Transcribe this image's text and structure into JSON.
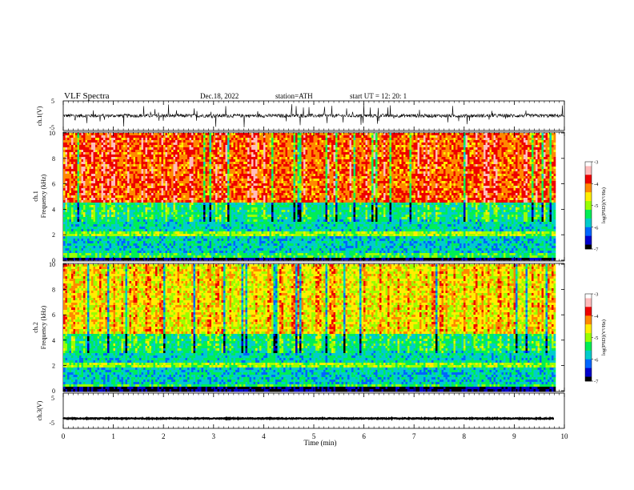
{
  "header": {
    "title": "VLF  Spectra",
    "date": "Dec.18, 2022",
    "station": "station=ATH",
    "start": "start  UT  =    12: 20: 1"
  },
  "colors": {
    "scale": [
      "#000000",
      "#0000cc",
      "#0066ff",
      "#00cccc",
      "#00ee55",
      "#99ff00",
      "#ffee00",
      "#ff8800",
      "#ee0000",
      "#ffbbbb",
      "#ffffff"
    ]
  },
  "chart_data": [
    {
      "type": "line",
      "name": "ch1-waveform",
      "ylabel": "ch.1(V)",
      "ylim": [
        -5,
        5
      ],
      "yticks": [
        "5",
        "-5"
      ],
      "x_range": [
        0,
        10
      ],
      "baseline": 0,
      "amplitude": 1.2
    },
    {
      "type": "heatmap",
      "name": "ch1-spectrogram",
      "ylabel_top": "ch.1",
      "ylabel": "Frequency  (kHz)",
      "ylim": [
        0,
        10
      ],
      "yticks": [
        "0",
        "2",
        "4",
        "6",
        "8",
        "10"
      ],
      "x_range": [
        0,
        9.8
      ],
      "colorbar": {
        "label": "log(PSD)(V²/Hz)",
        "range": [
          -7,
          -3
        ],
        "ticks": [
          "-3",
          "-4",
          "-5",
          "-6",
          "-7"
        ]
      }
    },
    {
      "type": "heatmap",
      "name": "ch2-spectrogram",
      "ylabel_top": "ch.2",
      "ylabel": "Frequency  (kHz)",
      "ylim": [
        0,
        10
      ],
      "yticks": [
        "0",
        "2",
        "4",
        "6",
        "8",
        "10"
      ],
      "x_range": [
        0,
        9.8
      ],
      "colorbar": {
        "label": "log(PSD)(V²/Hz)",
        "range": [
          -7,
          -3
        ],
        "ticks": [
          "-3",
          "-4",
          "-5",
          "-6",
          "-7"
        ]
      }
    },
    {
      "type": "line",
      "name": "ch3-waveform",
      "ylabel": "ch.3(V)",
      "ylim": [
        -5,
        5
      ],
      "yticks": [
        "5",
        "-5"
      ],
      "x_range": [
        0,
        9.8
      ],
      "baseline": -2.2,
      "amplitude": 0.25
    }
  ],
  "xaxis": {
    "label": "Time  (min)",
    "ticks": [
      "0",
      "1",
      "2",
      "3",
      "4",
      "5",
      "6",
      "7",
      "8",
      "9",
      "10"
    ],
    "range": [
      0,
      10
    ]
  }
}
